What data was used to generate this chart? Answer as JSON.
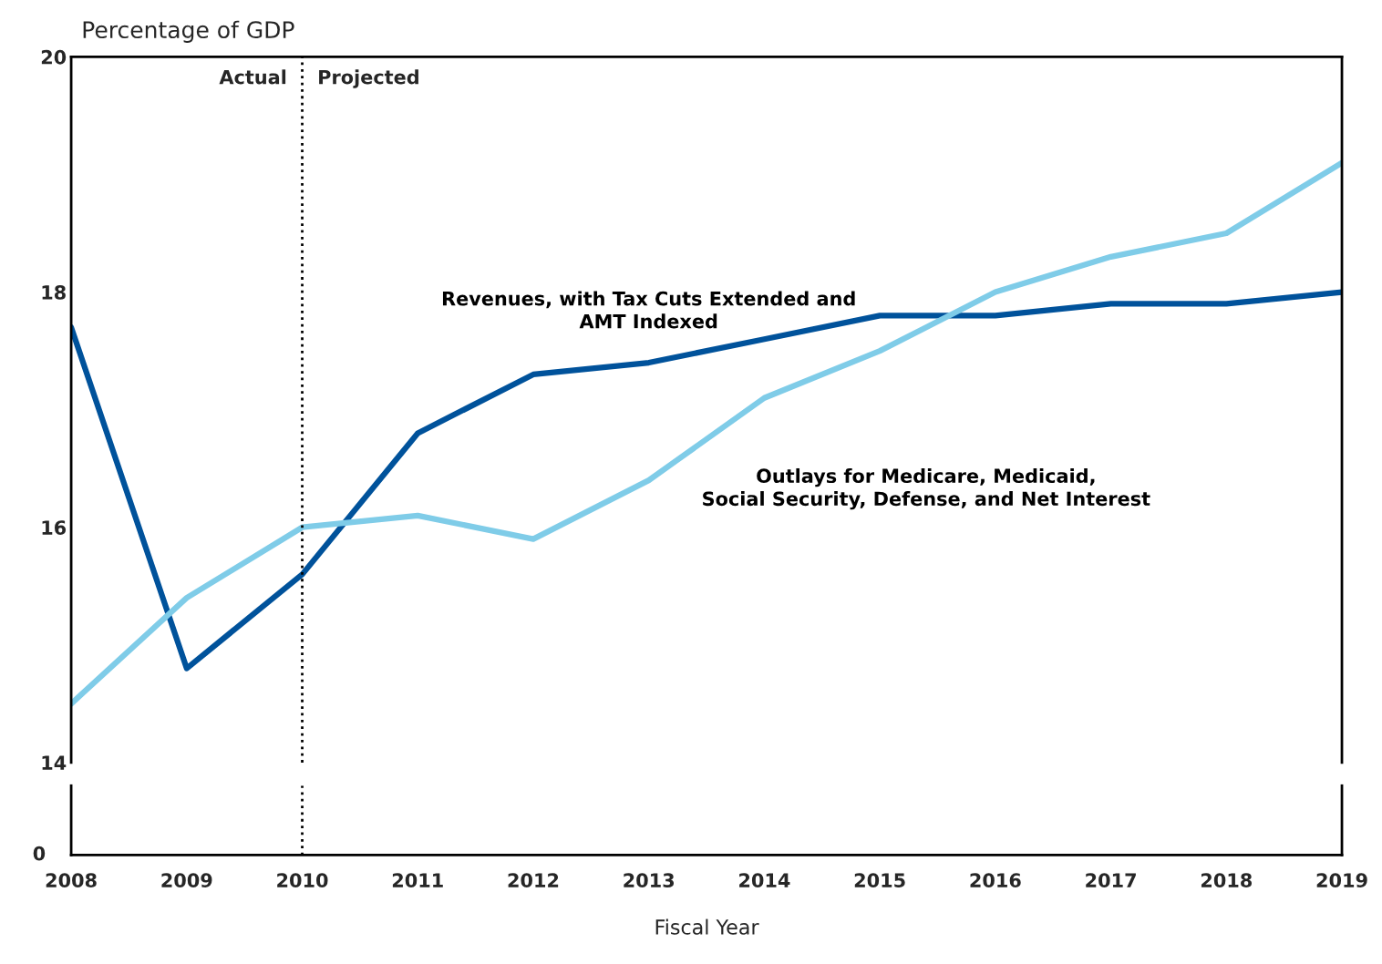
{
  "chart_data": {
    "type": "line",
    "ylabel": "Percentage of GDP",
    "xlabel": "Fiscal Year",
    "x": [
      2008,
      2009,
      2010,
      2011,
      2012,
      2013,
      2014,
      2015,
      2016,
      2017,
      2018,
      2019
    ],
    "xlim": [
      2008,
      2019
    ],
    "xticks": [
      2008,
      2009,
      2010,
      2011,
      2012,
      2013,
      2014,
      2015,
      2016,
      2017,
      2018,
      2019
    ],
    "ylim": [
      14,
      20
    ],
    "yticks": [
      14,
      16,
      18,
      20
    ],
    "grid": false,
    "legend": false,
    "marker": "none",
    "line_style": "solid",
    "series": [
      {
        "name": "Revenues, with Tax Cuts Extended and\nAMT Indexed",
        "color": "#00529b",
        "values": [
          17.7,
          14.8,
          15.6,
          16.8,
          17.3,
          17.4,
          17.6,
          17.8,
          17.8,
          17.9,
          17.9,
          18.0
        ]
      },
      {
        "name": "Outlays for Medicare, Medicaid,\nSocial Security, Defense, and Net Interest",
        "color": "#7fcce8",
        "values": [
          14.5,
          15.4,
          16.0,
          16.1,
          15.9,
          16.4,
          17.1,
          17.5,
          18.0,
          18.3,
          18.5,
          19.1
        ]
      }
    ],
    "ref_lines": [
      {
        "axis": "x",
        "value": 2010,
        "line_style": "dotted",
        "color": "#000000"
      }
    ],
    "annotations": [
      "Actual",
      "Projected",
      "0"
    ]
  }
}
